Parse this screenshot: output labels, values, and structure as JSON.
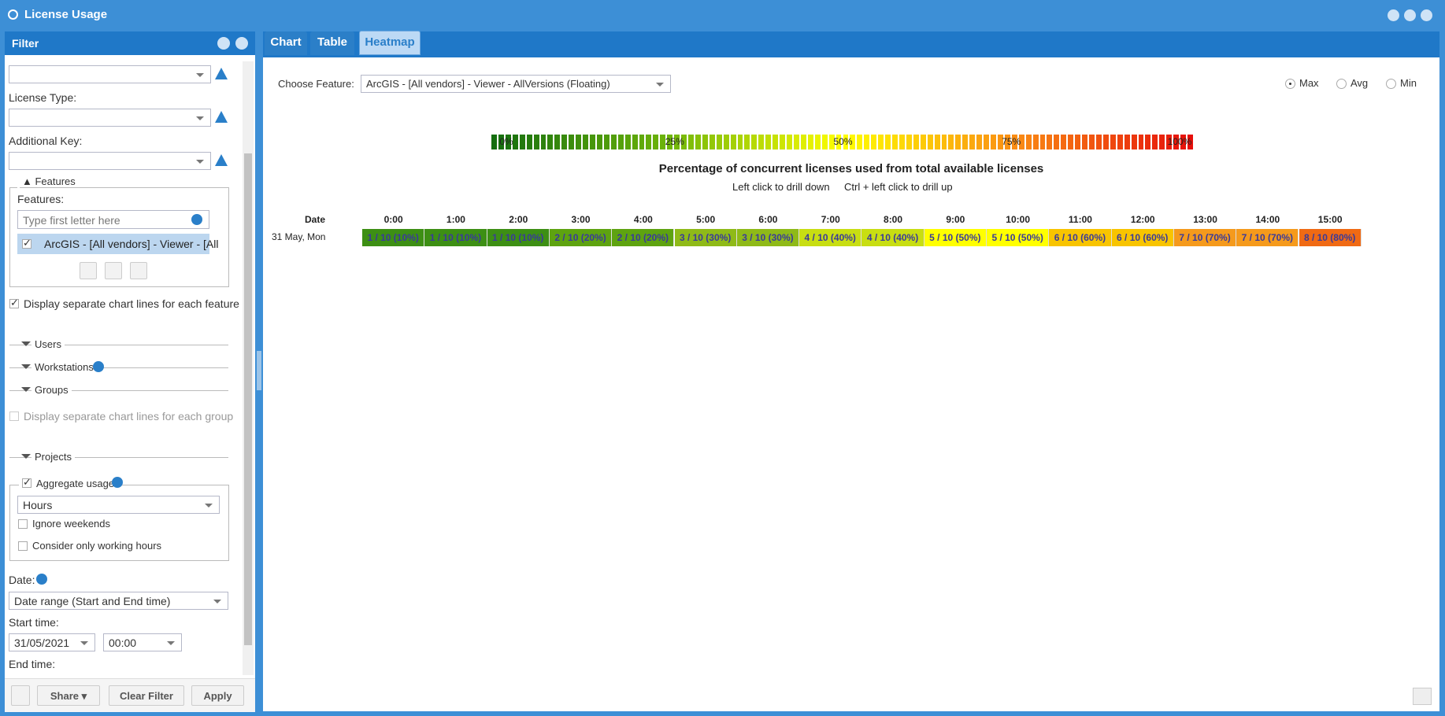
{
  "window": {
    "title": "License Usage"
  },
  "filter": {
    "title": "Filter",
    "license_type_label": "License Type:",
    "additional_key_label": "Additional Key:",
    "features_group": {
      "legend": "Features",
      "label": "Features:",
      "placeholder": "Type first letter here",
      "items": [
        "ArcGIS - [All vendors] - Viewer - [All"
      ]
    },
    "separate_feature_lines": "Display separate chart lines for each feature",
    "sections": [
      "Users",
      "Workstations",
      "Groups"
    ],
    "separate_group_lines": "Display separate chart lines for each group",
    "projects": "Projects",
    "aggregate": {
      "label": "Aggregate usage",
      "unit": "Hours",
      "ignore_weekends": "Ignore weekends",
      "working_hours": "Consider only working hours"
    },
    "date_label": "Date:",
    "date_mode": "Date range (Start and End time)",
    "start_label": "Start time:",
    "start_date": "31/05/2021",
    "start_time": "00:00",
    "end_label": "End time:"
  },
  "toolbar": {
    "share": "Share",
    "clear": "Clear Filter",
    "apply": "Apply"
  },
  "tabs": [
    "Chart",
    "Table",
    "Heatmap"
  ],
  "heatmap": {
    "feature_label": "Choose Feature:",
    "feature": "ArcGIS - [All vendors] - Viewer - AllVersions (Floating)",
    "modes": [
      "Max",
      "Avg",
      "Min"
    ],
    "scale_labels": [
      "0%",
      "25%",
      "50%",
      "75%",
      "100%"
    ],
    "title": "Percentage of concurrent licenses used from total available licenses",
    "hint_down": "Left click to drill down",
    "hint_up": "Ctrl + left click to drill up",
    "date_header": "Date",
    "hours": [
      "0:00",
      "1:00",
      "2:00",
      "3:00",
      "4:00",
      "5:00",
      "6:00",
      "7:00",
      "8:00",
      "9:00",
      "10:00",
      "11:00",
      "12:00",
      "13:00",
      "14:00",
      "15:00"
    ],
    "rows": [
      {
        "date": "31 May, Mon",
        "cells": [
          "1 / 10 (10%)",
          "1 / 10 (10%)",
          "1 / 10 (10%)",
          "2 / 10 (20%)",
          "2 / 10 (20%)",
          "3 / 10 (30%)",
          "3 / 10 (30%)",
          "4 / 10 (40%)",
          "4 / 10 (40%)",
          "5 / 10 (50%)",
          "5 / 10 (50%)",
          "6 / 10 (60%)",
          "6 / 10 (60%)",
          "7 / 10 (70%)",
          "7 / 10 (70%)",
          "8 / 10 (80%)"
        ],
        "cell_colors": [
          "#3d8f14",
          "#3d8f14",
          "#3d8f14",
          "#5ea310",
          "#5ea310",
          "#8fba18",
          "#8fba18",
          "#c8de12",
          "#c8de12",
          "#ffff00",
          "#ffff00",
          "#f8c400",
          "#f8c400",
          "#f59a1c",
          "#f59a1c",
          "#f06a14"
        ]
      }
    ]
  }
}
